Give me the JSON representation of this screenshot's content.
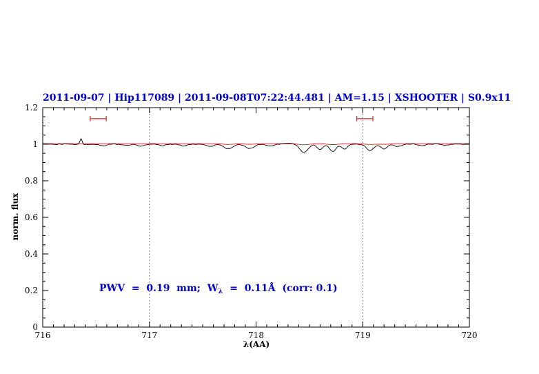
{
  "colors": {
    "accent_blue": "#0000cc",
    "model_red": "#cc2222",
    "axis": "#000000",
    "background": "#ffffff"
  },
  "annotation": {
    "pre": "PWV  =  0.19  mm;  W",
    "sub": "λ",
    "post": "  =  0.11Å  (corr: 0.1)"
  },
  "chart_data": {
    "type": "line",
    "title": "2011-09-07 | Hip117089 | 2011-09-08T07:22:44.481 | AM=1.15 | XSHOOTER | S0.9x11",
    "xlabel": "λ(AA)",
    "ylabel": "norm. flux",
    "xlim": [
      716,
      720
    ],
    "ylim": [
      0,
      1.2
    ],
    "xticks": [
      716,
      717,
      718,
      719,
      720
    ],
    "xtick_labels": [
      "716",
      "717",
      "718",
      "719",
      "720"
    ],
    "yticks": [
      0,
      0.2,
      0.4,
      0.6,
      0.8,
      1,
      1.2
    ],
    "ytick_labels": [
      "0",
      "0.2",
      "0.4",
      "0.6",
      "0.8",
      "1",
      "1.2"
    ],
    "x_minor_step": 0.1,
    "y_minor_step": 0.05,
    "grid": {
      "vlines_x": [
        717,
        719
      ],
      "style": "dotted"
    },
    "legend": "none",
    "range_markers": {
      "y": 1.14,
      "items": [
        {
          "center": 716.52,
          "halfwidth": 0.075
        },
        {
          "center": 719.02,
          "halfwidth": 0.075
        }
      ]
    },
    "series": [
      {
        "name": "telluric-model",
        "color": "#cc2222",
        "baseline": 1.003,
        "noise_amp": 0,
        "features": [
          {
            "c": 717.74,
            "d": 0.004,
            "w": 0.05
          },
          {
            "c": 717.94,
            "d": 0.003,
            "w": 0.05
          },
          {
            "c": 718.45,
            "d": 0.006,
            "w": 0.05
          },
          {
            "c": 718.72,
            "d": 0.005,
            "w": 0.05
          },
          {
            "c": 719.07,
            "d": 0.004,
            "w": 0.05
          },
          {
            "c": 719.2,
            "d": 0.003,
            "w": 0.05
          }
        ]
      },
      {
        "name": "observed-spectrum",
        "color": "#000000",
        "baseline": 1.0,
        "noise_amp": 0.0035,
        "features": [
          {
            "c": 716.36,
            "d": -0.03,
            "w": 0.01
          },
          {
            "c": 716.57,
            "d": 0.008,
            "w": 0.028
          },
          {
            "c": 716.78,
            "d": 0.006,
            "w": 0.03
          },
          {
            "c": 716.92,
            "d": 0.01,
            "w": 0.035
          },
          {
            "c": 717.12,
            "d": 0.008,
            "w": 0.03
          },
          {
            "c": 717.32,
            "d": 0.01,
            "w": 0.03
          },
          {
            "c": 717.57,
            "d": 0.013,
            "w": 0.032
          },
          {
            "c": 717.74,
            "d": 0.026,
            "w": 0.04
          },
          {
            "c": 717.94,
            "d": 0.024,
            "w": 0.04
          },
          {
            "c": 718.13,
            "d": 0.01,
            "w": 0.03
          },
          {
            "c": 718.3,
            "d": -0.006,
            "w": 0.04
          },
          {
            "c": 718.45,
            "d": 0.046,
            "w": 0.038
          },
          {
            "c": 718.6,
            "d": 0.03,
            "w": 0.028
          },
          {
            "c": 718.72,
            "d": 0.04,
            "w": 0.03
          },
          {
            "c": 718.83,
            "d": 0.026,
            "w": 0.028
          },
          {
            "c": 719.07,
            "d": 0.034,
            "w": 0.035
          },
          {
            "c": 719.2,
            "d": 0.026,
            "w": 0.03
          },
          {
            "c": 719.33,
            "d": 0.014,
            "w": 0.028
          },
          {
            "c": 719.55,
            "d": 0.008,
            "w": 0.03
          },
          {
            "c": 719.78,
            "d": 0.006,
            "w": 0.03
          }
        ]
      }
    ]
  }
}
